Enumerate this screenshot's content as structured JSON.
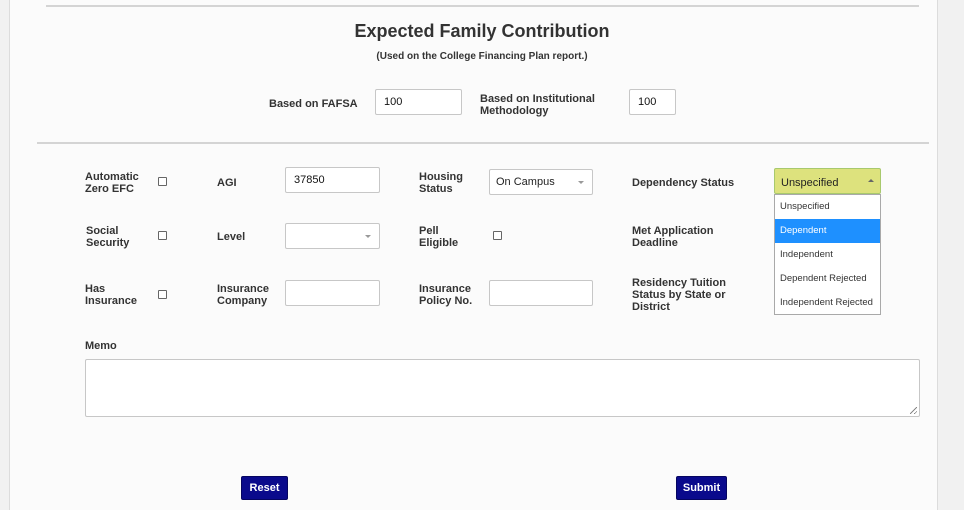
{
  "header": {
    "title": "Expected Family Contribution",
    "subtitle": "(Used on the College Financing Plan report.)"
  },
  "basis": {
    "fafsa_label": "Based on FAFSA",
    "fafsa_value": "100",
    "im_label_line1": "Based on Institutional",
    "im_label_line2": "Methodology",
    "im_value": "100"
  },
  "row1": {
    "auto_zero_efc_line1": "Automatic",
    "auto_zero_efc_line2": "Zero EFC",
    "agi_label": "AGI",
    "agi_value": "37850",
    "housing_line1": "Housing",
    "housing_line2": "Status",
    "housing_value": "On Campus",
    "dependency_label": "Dependency Status",
    "dependency_value": "Unspecified"
  },
  "row2": {
    "social_line1": "Social",
    "social_line2": "Security",
    "level_label": "Level",
    "level_value": "",
    "pell_line1": "Pell",
    "pell_line2": "Eligible",
    "met_line1": "Met Application",
    "met_line2": "Deadline"
  },
  "row3": {
    "insurance_line1": "Has",
    "insurance_line2": "Insurance",
    "company_line1": "Insurance",
    "company_line2": "Company",
    "company_value": "",
    "policy_line1": "Insurance",
    "policy_line2": "Policy No.",
    "policy_value": "",
    "residency_line1": "Residency Tuition",
    "residency_line2": "Status by State or",
    "residency_line3": "District"
  },
  "dependency_options": [
    "Unspecified",
    "Dependent",
    "Independent",
    "Dependent Rejected",
    "Independent Rejected"
  ],
  "highlighted_option": "Dependent",
  "memo": {
    "label": "Memo",
    "value": ""
  },
  "buttons": {
    "reset": "Reset",
    "submit": "Submit"
  },
  "colors": {
    "button_bg": "#0a0a8c",
    "dropdown_highlight": "#1e90ff",
    "select_open_bg": "#dde27d"
  }
}
